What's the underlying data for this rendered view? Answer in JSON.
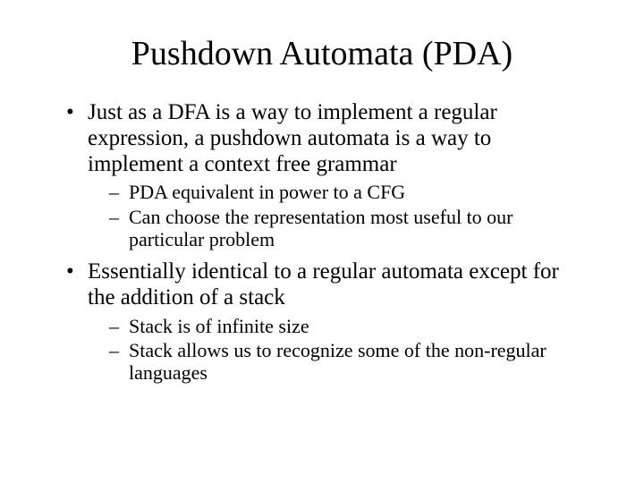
{
  "title": "Pushdown Automata (PDA)",
  "bullets": [
    {
      "text": "Just as a DFA is a way to implement a regular expression, a pushdown automata is a way to implement a context free grammar",
      "sub": [
        "PDA equivalent in power to a CFG",
        "Can choose the representation most useful to our particular problem"
      ]
    },
    {
      "text": "Essentially identical to a regular automata except for the addition of a stack",
      "sub": [
        "Stack is of infinite size",
        "Stack allows us to recognize some of the non-regular languages"
      ]
    }
  ],
  "style": {
    "background_color": "#ffffff",
    "text_color": "#000000",
    "font_family": "Times New Roman",
    "title_fontsize": 38,
    "level1_fontsize": 25,
    "level2_fontsize": 22,
    "level1_marker": "•",
    "level2_marker": "–"
  }
}
